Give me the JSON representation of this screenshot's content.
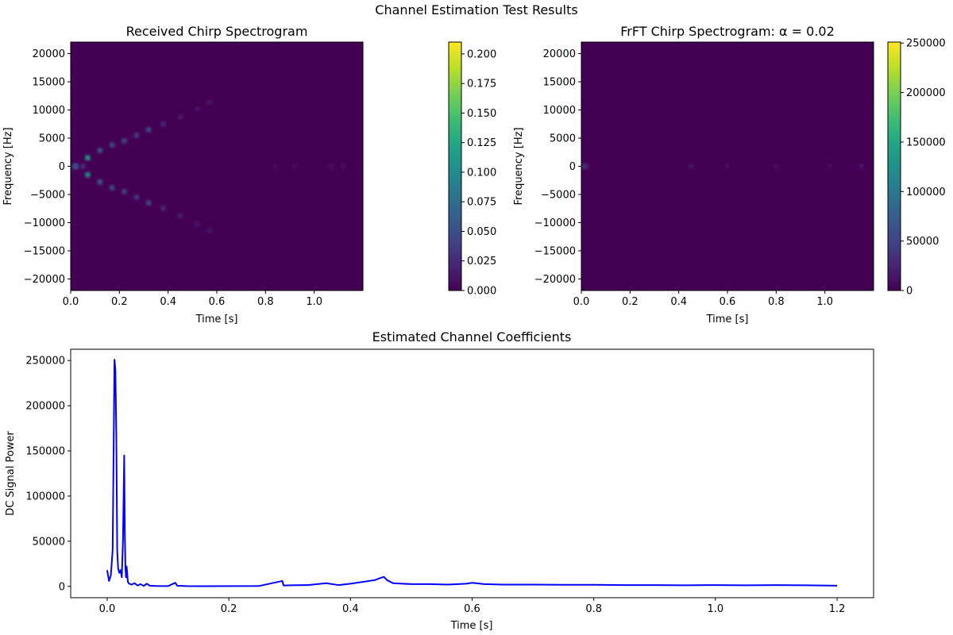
{
  "figure": {
    "suptitle": "Channel Estimation Test Results"
  },
  "chart_data": [
    {
      "type": "heatmap",
      "title": "Received Chirp Spectrogram",
      "xlabel": "Time [s]",
      "ylabel": "Frequency [Hz]",
      "xlim": [
        0.0,
        1.2
      ],
      "ylim": [
        -22050,
        22050
      ],
      "xticks": [
        0.0,
        0.2,
        0.4,
        0.6,
        0.8,
        1.0
      ],
      "xtick_labels": [
        "0.0",
        "0.2",
        "0.4",
        "0.6",
        "0.8",
        "1.0"
      ],
      "yticks": [
        20000,
        15000,
        10000,
        5000,
        0,
        -5000,
        -10000,
        -15000,
        -20000
      ],
      "ytick_labels": [
        "20000",
        "15000",
        "10000",
        "5000",
        "0",
        "−5000",
        "−10000",
        "−15000",
        "−20000"
      ],
      "colormap": "viridis",
      "background_color": "#440154",
      "colorbar": {
        "range": [
          0.0,
          0.21
        ],
        "ticks": [
          0.0,
          0.025,
          0.05,
          0.075,
          0.1,
          0.125,
          0.15,
          0.175,
          0.2
        ],
        "tick_labels": [
          "0.000",
          "0.025",
          "0.050",
          "0.075",
          "0.100",
          "0.125",
          "0.150",
          "0.175",
          "0.200"
        ]
      },
      "features": [
        {
          "description": "up-chirp",
          "points": [
            [
              0.02,
              0
            ],
            [
              0.07,
              1500
            ],
            [
              0.12,
              2800
            ],
            [
              0.17,
              3800
            ],
            [
              0.22,
              4500
            ],
            [
              0.27,
              5500
            ],
            [
              0.32,
              6500
            ],
            [
              0.38,
              7500
            ],
            [
              0.45,
              8800
            ],
            [
              0.52,
              10200
            ],
            [
              0.57,
              11400
            ]
          ],
          "intensities": [
            0.03,
            0.12,
            0.06,
            0.05,
            0.045,
            0.04,
            0.05,
            0.025,
            0.015,
            0.01,
            0.012
          ]
        },
        {
          "description": "down-chirp",
          "points": [
            [
              0.02,
              0
            ],
            [
              0.07,
              -1500
            ],
            [
              0.12,
              -2800
            ],
            [
              0.17,
              -3800
            ],
            [
              0.22,
              -4500
            ],
            [
              0.27,
              -5500
            ],
            [
              0.32,
              -6500
            ],
            [
              0.38,
              -7500
            ],
            [
              0.45,
              -8800
            ],
            [
              0.52,
              -10200
            ],
            [
              0.57,
              -11400
            ]
          ],
          "intensities": [
            0.03,
            0.11,
            0.06,
            0.05,
            0.045,
            0.04,
            0.05,
            0.025,
            0.015,
            0.01,
            0.012
          ]
        },
        {
          "description": "dc",
          "points": [
            [
              0.02,
              0
            ],
            [
              0.05,
              0
            ],
            [
              0.84,
              0
            ],
            [
              0.92,
              0
            ],
            [
              1.07,
              0
            ],
            [
              1.12,
              0
            ]
          ],
          "intensities": [
            0.05,
            0.03,
            0.006,
            0.005,
            0.008,
            0.006
          ]
        }
      ]
    },
    {
      "type": "heatmap",
      "title": "FrFT Chirp Spectrogram: α = 0.02",
      "xlabel": "Time [s]",
      "ylabel": "Frequency [Hz]",
      "xlim": [
        0.0,
        1.2
      ],
      "ylim": [
        -22050,
        22050
      ],
      "xticks": [
        0.0,
        0.2,
        0.4,
        0.6,
        0.8,
        1.0
      ],
      "xtick_labels": [
        "0.0",
        "0.2",
        "0.4",
        "0.6",
        "0.8",
        "1.0"
      ],
      "yticks": [
        20000,
        15000,
        10000,
        5000,
        0,
        -5000,
        -10000,
        -15000,
        -20000
      ],
      "ytick_labels": [
        "20000",
        "15000",
        "10000",
        "5000",
        "0",
        "−5000",
        "−10000",
        "−15000",
        "−20000"
      ],
      "colormap": "viridis",
      "background_color": "#440154",
      "colorbar": {
        "range": [
          0,
          251000
        ],
        "ticks": [
          0,
          50000,
          100000,
          150000,
          200000,
          250000
        ],
        "tick_labels": [
          "0",
          "50000",
          "100000",
          "150000",
          "200000",
          "250000"
        ]
      },
      "features": [
        {
          "description": "dc",
          "points": [
            [
              0.01,
              0
            ],
            [
              0.02,
              0
            ],
            [
              0.45,
              0
            ],
            [
              0.6,
              0
            ],
            [
              0.8,
              0
            ],
            [
              1.02,
              0
            ],
            [
              1.15,
              0
            ]
          ],
          "intensities": [
            40000,
            25000,
            12000,
            9000,
            8000,
            10000,
            12000
          ]
        }
      ]
    },
    {
      "type": "line",
      "title": "Estimated Channel Coefficients",
      "xlabel": "Time [s]",
      "ylabel": "DC Signal Power",
      "xlim": [
        -0.06,
        1.26
      ],
      "ylim": [
        -12500,
        262500
      ],
      "xticks": [
        0.0,
        0.2,
        0.4,
        0.6,
        0.8,
        1.0,
        1.2
      ],
      "xtick_labels": [
        "0.0",
        "0.2",
        "0.4",
        "0.6",
        "0.8",
        "1.0",
        "1.2"
      ],
      "yticks": [
        0,
        50000,
        100000,
        150000,
        200000,
        250000
      ],
      "ytick_labels": [
        "0",
        "50000",
        "100000",
        "150000",
        "200000",
        "250000"
      ],
      "line_color": "#0000ff",
      "series": [
        {
          "x": [
            0.0,
            0.003,
            0.006,
            0.009,
            0.012,
            0.0135,
            0.015,
            0.0165,
            0.018,
            0.02,
            0.022,
            0.024,
            0.026,
            0.028,
            0.029,
            0.03,
            0.031,
            0.032,
            0.034,
            0.036,
            0.04,
            0.045,
            0.05,
            0.055,
            0.06,
            0.065,
            0.07,
            0.08,
            0.1,
            0.112,
            0.115,
            0.13,
            0.16,
            0.2,
            0.25,
            0.288,
            0.29,
            0.3,
            0.33,
            0.36,
            0.38,
            0.4,
            0.42,
            0.44,
            0.45,
            0.455,
            0.46,
            0.47,
            0.5,
            0.53,
            0.56,
            0.59,
            0.6,
            0.62,
            0.65,
            0.7,
            0.75,
            0.8,
            0.85,
            0.9,
            0.95,
            1.0,
            1.05,
            1.1,
            1.15,
            1.2
          ],
          "y": [
            18000,
            6000,
            12000,
            40000,
            251000,
            240000,
            168000,
            40000,
            20000,
            15000,
            18000,
            10000,
            52000,
            145000,
            60000,
            20000,
            10000,
            22000,
            5000,
            3000,
            2000,
            3500,
            1000,
            2500,
            500,
            3000,
            800,
            500,
            300,
            4000,
            800,
            300,
            200,
            300,
            500,
            6000,
            1000,
            1200,
            1500,
            3500,
            1500,
            3000,
            5000,
            7000,
            9500,
            10500,
            7000,
            3500,
            2500,
            2500,
            2000,
            3000,
            4000,
            2500,
            2000,
            2000,
            1800,
            1800,
            1500,
            1500,
            1200,
            1500,
            1200,
            1500,
            1200,
            800
          ]
        }
      ]
    }
  ]
}
